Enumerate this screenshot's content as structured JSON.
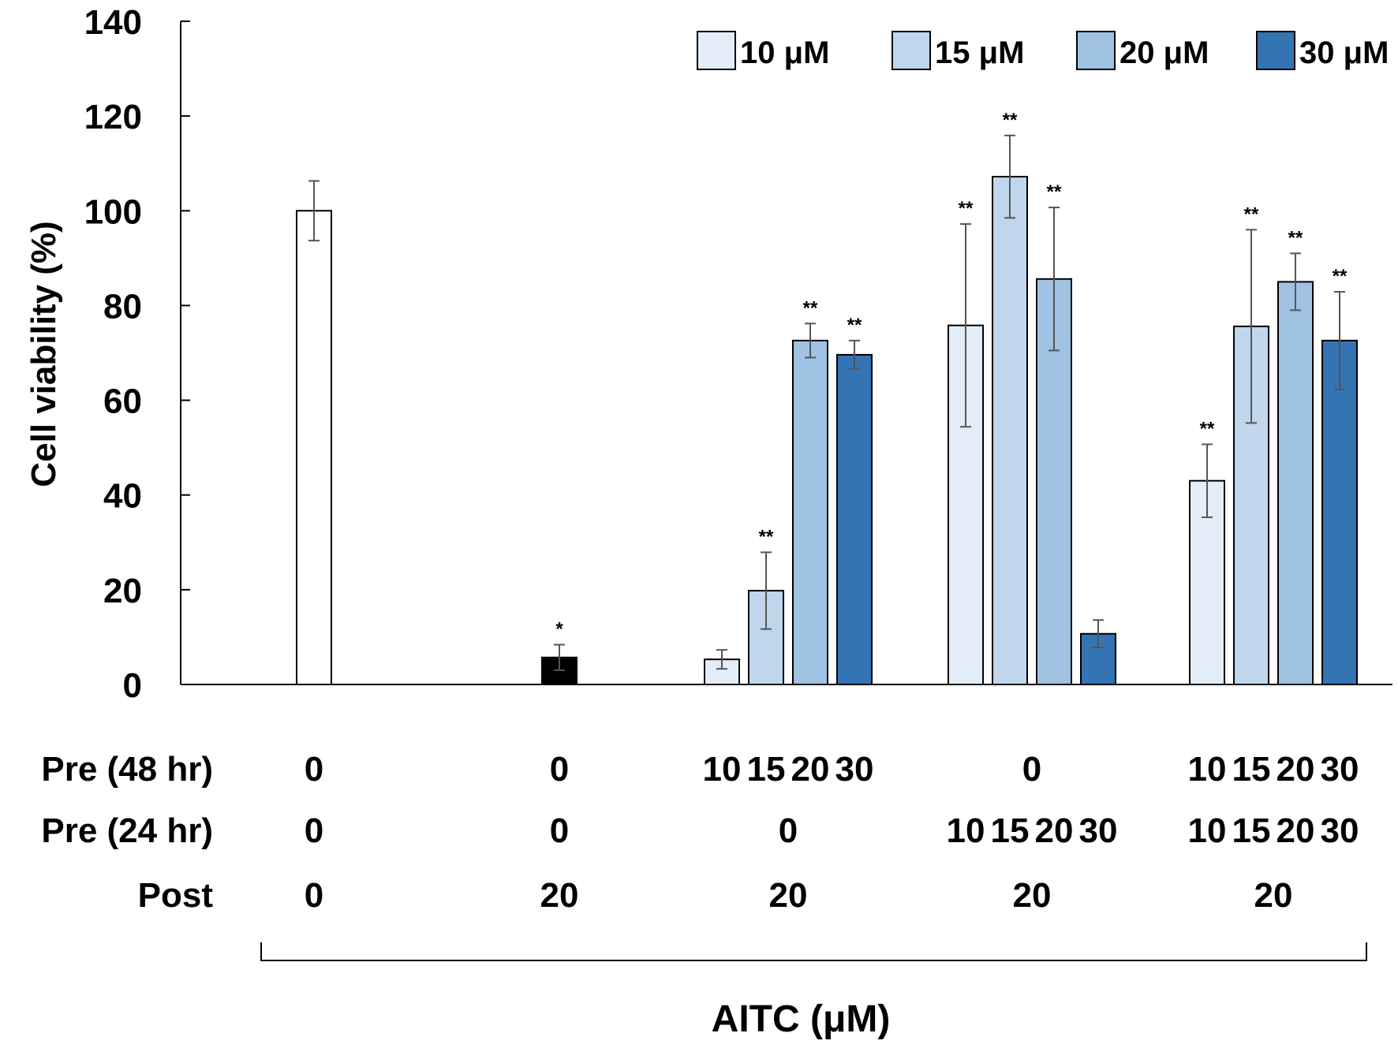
{
  "chart_data": {
    "type": "bar",
    "ylabel": "Cell viability (%)",
    "ylim": [
      0,
      140
    ],
    "yticks": [
      "0",
      "20",
      "40",
      "60",
      "80",
      "100",
      "120",
      "140"
    ],
    "xlabel": "AITC (μM)",
    "legend": {
      "placement": "top-right",
      "entries": [
        {
          "name": "10 μM",
          "color": "#e3edf8"
        },
        {
          "name": "15 μM",
          "color": "#c0d6ed"
        },
        {
          "name": "20 μM",
          "color": "#a0c2e3"
        },
        {
          "name": "30 μM",
          "color": "#3574b2"
        }
      ]
    },
    "row_labels": [
      "Pre (48 hr)",
      "Pre (24 hr)",
      "Post"
    ],
    "groups": [
      {
        "pre48": [
          "0"
        ],
        "pre24": [
          "0"
        ],
        "post": "0",
        "bars": [
          {
            "value": 100,
            "error": 6.3,
            "sig": "",
            "color": "#ffffff"
          }
        ]
      },
      {
        "pre48": [
          "0"
        ],
        "pre24": [
          "0"
        ],
        "post": "20",
        "bars": [
          {
            "value": 5.7,
            "error": 2.7,
            "sig": "*",
            "color": "#000000"
          }
        ]
      },
      {
        "pre48": [
          "10",
          "15",
          "20",
          "30"
        ],
        "pre24": [
          "0"
        ],
        "post": "20",
        "bars": [
          {
            "value": 5.3,
            "error": 2.0,
            "sig": "",
            "color": "#e3edf8"
          },
          {
            "value": 19.8,
            "error": 8.1,
            "sig": "**",
            "color": "#c0d6ed"
          },
          {
            "value": 72.6,
            "error": 3.6,
            "sig": "**",
            "color": "#a0c2e3"
          },
          {
            "value": 69.6,
            "error": 3.0,
            "sig": "**",
            "color": "#3574b2"
          }
        ]
      },
      {
        "pre48": [
          "0"
        ],
        "pre24": [
          "10",
          "15",
          "20",
          "30"
        ],
        "post": "20",
        "bars": [
          {
            "value": 75.8,
            "error": 21.4,
            "sig": "**",
            "color": "#e3edf8"
          },
          {
            "value": 107.2,
            "error": 8.7,
            "sig": "**",
            "color": "#c0d6ed"
          },
          {
            "value": 85.6,
            "error": 15.1,
            "sig": "**",
            "color": "#a0c2e3"
          },
          {
            "value": 10.7,
            "error": 2.9,
            "sig": "",
            "color": "#3574b2"
          }
        ]
      },
      {
        "pre48": [
          "10",
          "15",
          "20",
          "30"
        ],
        "pre24": [
          "10",
          "15",
          "20",
          "30"
        ],
        "post": "20",
        "bars": [
          {
            "value": 43.0,
            "error": 7.7,
            "sig": "**",
            "color": "#e3edf8"
          },
          {
            "value": 75.6,
            "error": 20.4,
            "sig": "**",
            "color": "#c0d6ed"
          },
          {
            "value": 85.0,
            "error": 6.0,
            "sig": "**",
            "color": "#a0c2e3"
          },
          {
            "value": 72.6,
            "error": 10.3,
            "sig": "**",
            "color": "#3574b2"
          }
        ]
      }
    ]
  }
}
